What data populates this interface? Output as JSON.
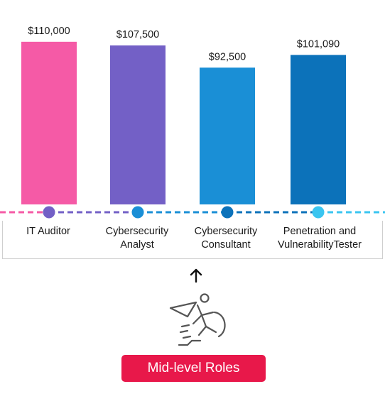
{
  "chart_data": {
    "type": "bar",
    "categories": [
      "IT Auditor",
      "Cybersecurity\nAnalyst",
      "Cybersecurity\nConsultant",
      "Penetration and\nVulnerabilityTester"
    ],
    "values": [
      110000,
      107500,
      92500,
      101090
    ],
    "value_labels": [
      "$110,000",
      "$107,500",
      "$92,500",
      "$101,090"
    ],
    "bar_colors": [
      "#f55aa6",
      "#7360c6",
      "#1a8fd6",
      "#0c72ba"
    ],
    "dot_colors": [
      "#7360c6",
      "#1a8fd6",
      "#0c72ba",
      "#3ac5f0"
    ],
    "timeline_colors": [
      "#f55aa6",
      "#7360c6",
      "#1a8fd6",
      "#0c72ba",
      "#3ac5f0"
    ],
    "ylim": [
      0,
      120000
    ]
  },
  "badge": {
    "label": "Mid-level Roles",
    "color": "#e8184a"
  },
  "icons": {
    "arrow": "up-arrow-icon",
    "runner": "runner-breaking-through-icon"
  }
}
